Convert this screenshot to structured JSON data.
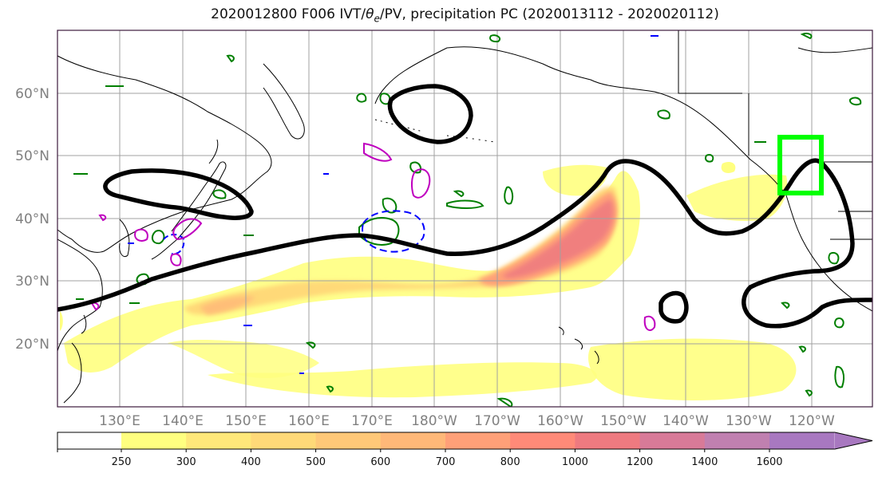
{
  "title": {
    "prefix": "2020012800 F006 IVT/",
    "theta": "θ",
    "theta_sub": "e",
    "suffix": "/PV, precipitation PC (2020013112 - 2020020112)"
  },
  "lat_labels": [
    "60°N",
    "50°N",
    "40°N",
    "30°N",
    "20°N"
  ],
  "lon_labels": [
    "130°E",
    "140°E",
    "150°E",
    "160°E",
    "170°E",
    "180°W",
    "170°W",
    "160°W",
    "150°W",
    "140°W",
    "130°W",
    "120°W"
  ],
  "colorbar": {
    "ticks": [
      "250",
      "300",
      "400",
      "500",
      "600",
      "700",
      "800",
      "1000",
      "1200",
      "1400",
      "1600"
    ],
    "colors": [
      "#ffff80",
      "#ffe87a",
      "#ffd978",
      "#ffc878",
      "#ffb878",
      "#ffa078",
      "#ff8a78",
      "#ee7a80",
      "#d87a98",
      "#c080b0",
      "#a878c0"
    ]
  },
  "colors": {
    "contour_black": "#000000",
    "pv_green": "#007f00",
    "pv_blue": "#0000ff",
    "precip_magenta": "#bf00bf",
    "box_lime": "#00ff00",
    "grid": "#a0a0a0"
  }
}
